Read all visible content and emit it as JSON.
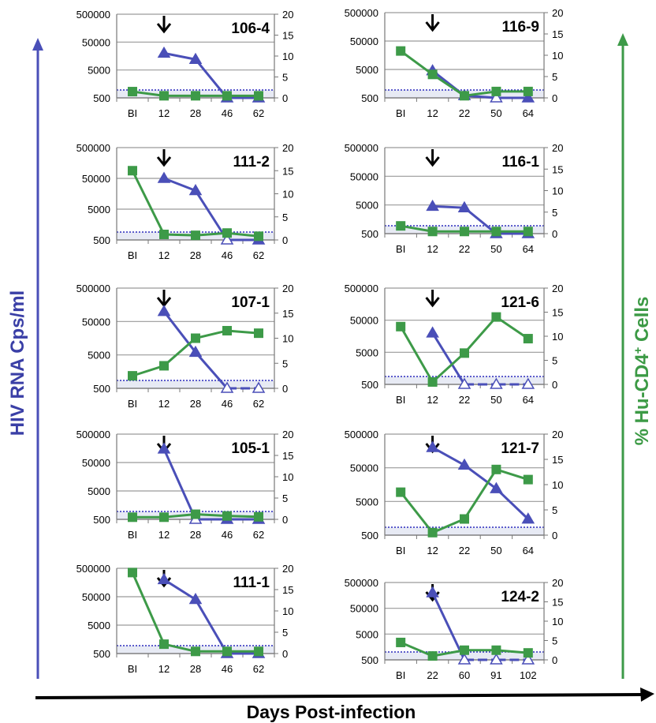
{
  "figure": {
    "left_axis_label": "HIV RNA Cps/ml",
    "right_axis_label_prefix": "% Hu-CD4",
    "right_axis_label_sup": "+",
    "right_axis_label_suffix": " Cells",
    "x_axis_label": "Days Post-infection"
  },
  "colors": {
    "hiv": "#4a4fb8",
    "cd4": "#3d9a48",
    "detection_limit": "#2b2bbd",
    "detection_band": "#e7eaf4",
    "grid": "#9a9a9a"
  },
  "chart_data": [
    {
      "type": "line",
      "title": "106-4",
      "categories": [
        "BI",
        "12",
        "28",
        "46",
        "62"
      ],
      "arrow_at": "12",
      "y_left": {
        "scale": "log",
        "ticks": [
          "500",
          "5000",
          "50000",
          "500000"
        ],
        "ylim": [
          500,
          500000
        ]
      },
      "y_right": {
        "ticks": [
          "0",
          "5",
          "10",
          "15",
          "20"
        ],
        "ylim": [
          0,
          20
        ]
      },
      "series": [
        {
          "key": "hiv",
          "values": [
            null,
            20000,
            12000,
            500,
            500
          ],
          "open": [
            false,
            false,
            false,
            false,
            false
          ],
          "dashed_from": null
        },
        {
          "key": "cd4",
          "values": [
            1.5,
            0.5,
            0.5,
            0.5,
            0.5
          ]
        }
      ]
    },
    {
      "type": "line",
      "title": "116-9",
      "categories": [
        "BI",
        "12",
        "22",
        "50",
        "64"
      ],
      "arrow_at": "12",
      "y_left": {
        "scale": "log",
        "ticks": [
          "500",
          "5000",
          "50000",
          "500000"
        ],
        "ylim": [
          500,
          500000
        ]
      },
      "y_right": {
        "ticks": [
          "0",
          "5",
          "10",
          "15",
          "20"
        ],
        "ylim": [
          0,
          20
        ]
      },
      "series": [
        {
          "key": "hiv",
          "values": [
            null,
            4500,
            600,
            500,
            500
          ],
          "open": [
            false,
            false,
            false,
            true,
            false
          ],
          "dashed_from": null
        },
        {
          "key": "cd4",
          "values": [
            11,
            5.5,
            0.5,
            1.5,
            1.5
          ]
        }
      ]
    },
    {
      "type": "line",
      "title": "111-2",
      "categories": [
        "BI",
        "12",
        "28",
        "46",
        "62"
      ],
      "arrow_at": "12",
      "y_left": {
        "scale": "log",
        "ticks": [
          "500",
          "5000",
          "50000",
          "500000"
        ],
        "ylim": [
          500,
          500000
        ]
      },
      "y_right": {
        "ticks": [
          "0",
          "5",
          "10",
          "15",
          "20"
        ],
        "ylim": [
          0,
          20
        ]
      },
      "series": [
        {
          "key": "hiv",
          "values": [
            null,
            50000,
            20000,
            500,
            500
          ],
          "open": [
            false,
            false,
            false,
            true,
            false
          ],
          "dashed_from": null
        },
        {
          "key": "cd4",
          "values": [
            15,
            1.2,
            1,
            1.5,
            0.8
          ]
        }
      ]
    },
    {
      "type": "line",
      "title": "116-1",
      "categories": [
        "BI",
        "12",
        "22",
        "50",
        "64"
      ],
      "arrow_at": "12",
      "y_left": {
        "scale": "log",
        "ticks": [
          "500",
          "5000",
          "50000",
          "500000"
        ],
        "ylim": [
          500,
          500000
        ]
      },
      "y_right": {
        "ticks": [
          "0",
          "5",
          "10",
          "15",
          "20"
        ],
        "ylim": [
          0,
          20
        ]
      },
      "series": [
        {
          "key": "hiv",
          "values": [
            null,
            4500,
            4000,
            500,
            500
          ],
          "open": [
            false,
            false,
            false,
            false,
            false
          ],
          "dashed_from": null
        },
        {
          "key": "cd4",
          "values": [
            1.8,
            0.5,
            0.5,
            0.5,
            0.5
          ]
        }
      ]
    },
    {
      "type": "line",
      "title": "107-1",
      "categories": [
        "BI",
        "12",
        "28",
        "46",
        "62"
      ],
      "arrow_at": "12",
      "y_left": {
        "scale": "log",
        "ticks": [
          "500",
          "5000",
          "50000",
          "500000"
        ],
        "ylim": [
          500,
          500000
        ]
      },
      "y_right": {
        "ticks": [
          "0",
          "5",
          "10",
          "15",
          "20"
        ],
        "ylim": [
          0,
          20
        ]
      },
      "series": [
        {
          "key": "hiv",
          "values": [
            null,
            100000,
            6000,
            500,
            500
          ],
          "open": [
            false,
            false,
            false,
            true,
            true
          ],
          "dashed_from": 3
        },
        {
          "key": "cd4",
          "values": [
            2.5,
            4.5,
            10,
            11.5,
            11
          ]
        }
      ]
    },
    {
      "type": "line",
      "title": "121-6",
      "categories": [
        "BI",
        "12",
        "22",
        "50",
        "64"
      ],
      "arrow_at": "12",
      "y_left": {
        "scale": "log",
        "ticks": [
          "500",
          "5000",
          "50000",
          "500000"
        ],
        "ylim": [
          500,
          500000
        ]
      },
      "y_right": {
        "ticks": [
          "0",
          "5",
          "10",
          "15",
          "20"
        ],
        "ylim": [
          0,
          20
        ]
      },
      "series": [
        {
          "key": "hiv",
          "values": [
            null,
            20000,
            500,
            500,
            500
          ],
          "open": [
            false,
            false,
            true,
            true,
            true
          ],
          "dashed_from": 2
        },
        {
          "key": "cd4",
          "values": [
            12,
            0.5,
            6.5,
            14,
            9.5
          ]
        }
      ]
    },
    {
      "type": "line",
      "title": "105-1",
      "categories": [
        "BI",
        "12",
        "28",
        "46",
        "62"
      ],
      "arrow_at": "12",
      "y_left": {
        "scale": "log",
        "ticks": [
          "500",
          "5000",
          "50000",
          "500000"
        ],
        "ylim": [
          500,
          500000
        ]
      },
      "y_right": {
        "ticks": [
          "0",
          "5",
          "10",
          "15",
          "20"
        ],
        "ylim": [
          0,
          20
        ]
      },
      "series": [
        {
          "key": "hiv",
          "values": [
            null,
            150000,
            500,
            500,
            500
          ],
          "open": [
            false,
            false,
            true,
            false,
            false
          ],
          "dashed_from": null
        },
        {
          "key": "cd4",
          "values": [
            0.5,
            0.5,
            1.2,
            0.8,
            0.6
          ]
        }
      ]
    },
    {
      "type": "line",
      "title": "121-7",
      "categories": [
        "BI",
        "12",
        "22",
        "50",
        "64"
      ],
      "arrow_at": "12",
      "y_left": {
        "scale": "log",
        "ticks": [
          "500",
          "5000",
          "50000",
          "500000"
        ],
        "ylim": [
          500,
          500000
        ]
      },
      "y_right": {
        "ticks": [
          "0",
          "5",
          "10",
          "15",
          "20"
        ],
        "ylim": [
          0,
          20
        ]
      },
      "series": [
        {
          "key": "hiv",
          "values": [
            null,
            200000,
            60000,
            12000,
            1500
          ],
          "open": [
            false,
            false,
            false,
            false,
            false
          ],
          "dashed_from": null
        },
        {
          "key": "cd4",
          "values": [
            8.5,
            0.5,
            3.2,
            13,
            11
          ]
        }
      ]
    },
    {
      "type": "line",
      "title": "111-1",
      "categories": [
        "BI",
        "12",
        "28",
        "46",
        "62"
      ],
      "arrow_at": "12",
      "y_left": {
        "scale": "log",
        "ticks": [
          "500",
          "5000",
          "50000",
          "500000"
        ],
        "ylim": [
          500,
          500000
        ]
      },
      "y_right": {
        "ticks": [
          "0",
          "5",
          "10",
          "15",
          "20"
        ],
        "ylim": [
          0,
          20
        ]
      },
      "series": [
        {
          "key": "hiv",
          "values": [
            null,
            200000,
            40000,
            500,
            500
          ],
          "open": [
            false,
            false,
            false,
            false,
            false
          ],
          "dashed_from": null
        },
        {
          "key": "cd4",
          "values": [
            19,
            2.2,
            0.5,
            0.5,
            0.5
          ]
        }
      ]
    },
    {
      "type": "line",
      "title": "124-2",
      "categories": [
        "BI",
        "22",
        "60",
        "91",
        "102"
      ],
      "arrow_at": "22",
      "y_left": {
        "scale": "log",
        "ticks": [
          "500",
          "5000",
          "50000",
          "500000"
        ],
        "ylim": [
          500,
          500000
        ]
      },
      "y_right": {
        "ticks": [
          "0",
          "5",
          "10",
          "15",
          "20"
        ],
        "ylim": [
          0,
          20
        ]
      },
      "series": [
        {
          "key": "hiv",
          "values": [
            null,
            200000,
            500,
            500,
            500
          ],
          "open": [
            false,
            false,
            true,
            true,
            true
          ],
          "dashed_from": 2
        },
        {
          "key": "cd4",
          "values": [
            4.5,
            1,
            2.5,
            2.5,
            1.8
          ]
        }
      ]
    }
  ]
}
